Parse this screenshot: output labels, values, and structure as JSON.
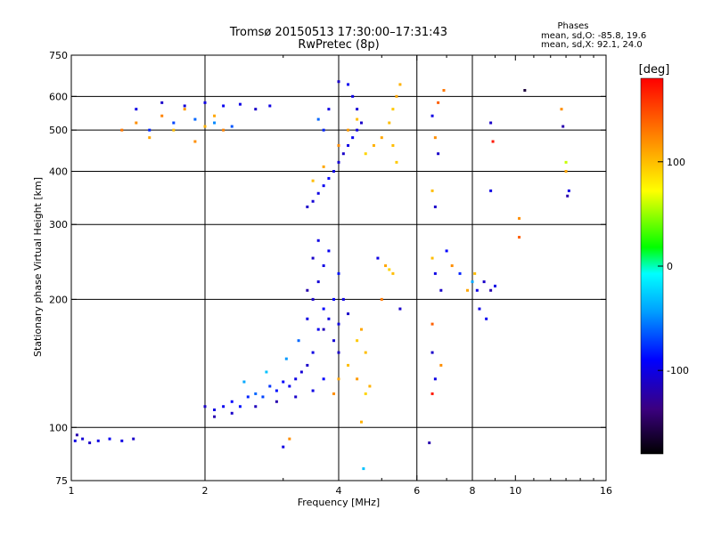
{
  "chart_data": {
    "type": "scatter",
    "title": "Tromsø 20150513 17:30:00–17:31:43",
    "subtitle": "RwPretec (8p)",
    "xlabel": "Frequency [MHz]",
    "ylabel": "Stationary phase Virtual Height [km]",
    "x_scale": "log",
    "y_scale": "log",
    "xlim": [
      1,
      16
    ],
    "ylim": [
      75,
      750
    ],
    "x_ticks": [
      1,
      2,
      4,
      6,
      8,
      10,
      16
    ],
    "x_tick_labels": [
      "1",
      "2",
      "4",
      "6",
      "8",
      "10",
      "16"
    ],
    "y_ticks": [
      75,
      100,
      200,
      300,
      400,
      500,
      600,
      750
    ],
    "y_tick_labels": [
      "75",
      "100",
      "200",
      "300",
      "400",
      "500",
      "600",
      "750"
    ],
    "grid_x": [
      2,
      4,
      6,
      8
    ],
    "grid_y": [
      100,
      200,
      300,
      400,
      500,
      600
    ],
    "grid": true,
    "stats": {
      "heading": "Phases",
      "line1": "mean, sd,O: -85.8, 19.6",
      "line2": "mean, sd,X:  92.1, 24.0"
    },
    "colorbar": {
      "label": "[deg]",
      "range": [
        -180,
        180
      ],
      "ticks": [
        100,
        0,
        -100
      ],
      "tick_labels": [
        "100",
        "0",
        "-100"
      ],
      "colors": [
        "#000000",
        "#3b0080",
        "#0000ff",
        "#00a0ff",
        "#00ffff",
        "#00ff00",
        "#ffff00",
        "#ff8000",
        "#ff0000"
      ]
    },
    "series": [
      {
        "points": [
          [
            1.02,
            93,
            -100
          ],
          [
            1.06,
            94,
            -105
          ],
          [
            1.1,
            92,
            -110
          ],
          [
            1.15,
            93,
            -100
          ],
          [
            1.22,
            94,
            -95
          ],
          [
            1.3,
            93,
            -100
          ],
          [
            1.38,
            94,
            -110
          ],
          [
            1.03,
            96,
            -120
          ],
          [
            2.0,
            112,
            -110
          ],
          [
            2.1,
            110,
            -100
          ],
          [
            2.2,
            112,
            -95
          ],
          [
            2.3,
            115,
            -90
          ],
          [
            2.4,
            112,
            -85
          ],
          [
            2.5,
            118,
            -80
          ],
          [
            2.6,
            120,
            -60
          ],
          [
            2.7,
            118,
            -70
          ],
          [
            2.8,
            125,
            -75
          ],
          [
            2.9,
            122,
            -85
          ],
          [
            3.0,
            128,
            -90
          ],
          [
            3.1,
            125,
            -95
          ],
          [
            3.2,
            130,
            -100
          ],
          [
            3.3,
            135,
            -105
          ],
          [
            3.4,
            140,
            -110
          ],
          [
            3.5,
            150,
            -100
          ],
          [
            3.6,
            170,
            -95
          ],
          [
            3.7,
            190,
            -90
          ],
          [
            2.1,
            106,
            -120
          ],
          [
            2.3,
            108,
            -110
          ],
          [
            2.6,
            112,
            -115
          ],
          [
            2.9,
            115,
            -120
          ],
          [
            3.2,
            118,
            -110
          ],
          [
            3.5,
            122,
            -100
          ],
          [
            3.7,
            130,
            -90
          ],
          [
            2.45,
            128,
            -40
          ],
          [
            2.75,
            135,
            -30
          ],
          [
            3.05,
            145,
            -45
          ],
          [
            3.25,
            160,
            -60
          ],
          [
            3.4,
            180,
            -100
          ],
          [
            3.5,
            200,
            -110
          ],
          [
            3.6,
            220,
            -105
          ],
          [
            3.7,
            240,
            -100
          ],
          [
            3.8,
            260,
            -95
          ],
          [
            3.9,
            200,
            -90
          ],
          [
            4.0,
            230,
            -85
          ],
          [
            3.5,
            250,
            -110
          ],
          [
            3.6,
            275,
            -100
          ],
          [
            3.4,
            210,
            -120
          ],
          [
            3.8,
            180,
            -100
          ],
          [
            3.9,
            160,
            -105
          ],
          [
            4.0,
            150,
            -110
          ],
          [
            3.7,
            170,
            -115
          ],
          [
            3.9,
            120,
            120
          ],
          [
            4.0,
            130,
            110
          ],
          [
            4.2,
            140,
            100
          ],
          [
            4.4,
            160,
            95
          ],
          [
            4.5,
            170,
            110
          ],
          [
            4.6,
            150,
            100
          ],
          [
            4.4,
            130,
            115
          ],
          [
            4.6,
            120,
            90
          ],
          [
            4.7,
            125,
            105
          ],
          [
            4.5,
            103,
            105
          ],
          [
            4.0,
            175,
            -100
          ],
          [
            4.2,
            185,
            -110
          ],
          [
            4.1,
            200,
            -100
          ],
          [
            3.1,
            94,
            120
          ],
          [
            3.0,
            90,
            -100
          ],
          [
            3.4,
            330,
            -110
          ],
          [
            3.5,
            340,
            -105
          ],
          [
            3.6,
            355,
            -100
          ],
          [
            3.7,
            370,
            -95
          ],
          [
            3.8,
            385,
            -90
          ],
          [
            3.9,
            400,
            -100
          ],
          [
            4.0,
            420,
            -105
          ],
          [
            4.1,
            440,
            -110
          ],
          [
            4.2,
            460,
            -100
          ],
          [
            4.3,
            480,
            -95
          ],
          [
            4.4,
            500,
            -100
          ],
          [
            4.5,
            520,
            -110
          ],
          [
            4.4,
            560,
            -105
          ],
          [
            4.3,
            600,
            -100
          ],
          [
            4.2,
            640,
            -95
          ],
          [
            4.0,
            650,
            -110
          ],
          [
            3.5,
            380,
            100
          ],
          [
            3.7,
            410,
            110
          ],
          [
            4.0,
            460,
            120
          ],
          [
            4.2,
            500,
            115
          ],
          [
            4.4,
            530,
            100
          ],
          [
            4.6,
            440,
            90
          ],
          [
            4.8,
            460,
            105
          ],
          [
            5.0,
            480,
            110
          ],
          [
            5.2,
            520,
            100
          ],
          [
            5.3,
            560,
            95
          ],
          [
            5.4,
            600,
            110
          ],
          [
            5.5,
            640,
            105
          ],
          [
            5.3,
            460,
            100
          ],
          [
            5.4,
            420,
            95
          ],
          [
            3.6,
            530,
            -60
          ],
          [
            3.7,
            500,
            -80
          ],
          [
            3.8,
            560,
            -100
          ],
          [
            1.3,
            500,
            130
          ],
          [
            1.4,
            520,
            120
          ],
          [
            1.5,
            480,
            110
          ],
          [
            1.6,
            540,
            125
          ],
          [
            1.7,
            500,
            100
          ],
          [
            1.8,
            560,
            115
          ],
          [
            1.9,
            470,
            120
          ],
          [
            2.0,
            510,
            105
          ],
          [
            2.1,
            540,
            110
          ],
          [
            2.2,
            500,
            125
          ],
          [
            1.4,
            560,
            -100
          ],
          [
            1.6,
            580,
            -110
          ],
          [
            1.8,
            570,
            -105
          ],
          [
            2.0,
            580,
            -100
          ],
          [
            2.2,
            570,
            -95
          ],
          [
            2.4,
            575,
            -100
          ],
          [
            2.6,
            560,
            -110
          ],
          [
            2.8,
            570,
            -100
          ],
          [
            1.5,
            500,
            -80
          ],
          [
            1.7,
            520,
            -70
          ],
          [
            1.9,
            530,
            -60
          ],
          [
            2.1,
            520,
            -50
          ],
          [
            2.3,
            510,
            -65
          ],
          [
            5.1,
            240,
            110
          ],
          [
            5.2,
            235,
            90
          ],
          [
            5.3,
            230,
            100
          ],
          [
            4.9,
            250,
            -100
          ],
          [
            5.0,
            200,
            130
          ],
          [
            5.5,
            190,
            -110
          ],
          [
            6.5,
            250,
            100
          ],
          [
            6.6,
            230,
            -100
          ],
          [
            6.8,
            210,
            -110
          ],
          [
            7.0,
            260,
            -90
          ],
          [
            7.5,
            230,
            -80
          ],
          [
            7.8,
            210,
            110
          ],
          [
            8.0,
            220,
            -40
          ],
          [
            8.2,
            210,
            -100
          ],
          [
            8.5,
            220,
            -110
          ],
          [
            8.8,
            210,
            -120
          ],
          [
            9.0,
            215,
            -100
          ],
          [
            8.3,
            190,
            -100
          ],
          [
            8.6,
            180,
            -95
          ],
          [
            7.2,
            240,
            120
          ],
          [
            8.1,
            230,
            100
          ],
          [
            6.5,
            175,
            140
          ],
          [
            6.5,
            150,
            -110
          ],
          [
            6.6,
            130,
            -100
          ],
          [
            6.8,
            140,
            120
          ],
          [
            6.5,
            120,
            170
          ],
          [
            6.4,
            92,
            -120
          ],
          [
            6.7,
            580,
            140
          ],
          [
            6.9,
            620,
            130
          ],
          [
            6.5,
            540,
            -100
          ],
          [
            6.6,
            480,
            120
          ],
          [
            6.7,
            440,
            -110
          ],
          [
            8.8,
            520,
            -110
          ],
          [
            8.9,
            470,
            170
          ],
          [
            8.8,
            360,
            -100
          ],
          [
            6.5,
            360,
            100
          ],
          [
            6.6,
            330,
            -110
          ],
          [
            10.5,
            620,
            -160
          ],
          [
            10.2,
            310,
            120
          ],
          [
            10.2,
            280,
            140
          ],
          [
            12.7,
            560,
            120
          ],
          [
            12.8,
            510,
            -120
          ],
          [
            13.0,
            420,
            60
          ],
          [
            13.0,
            400,
            110
          ],
          [
            13.2,
            360,
            -100
          ],
          [
            13.1,
            350,
            -120
          ],
          [
            4.55,
            80,
            -30
          ]
        ]
      }
    ]
  }
}
